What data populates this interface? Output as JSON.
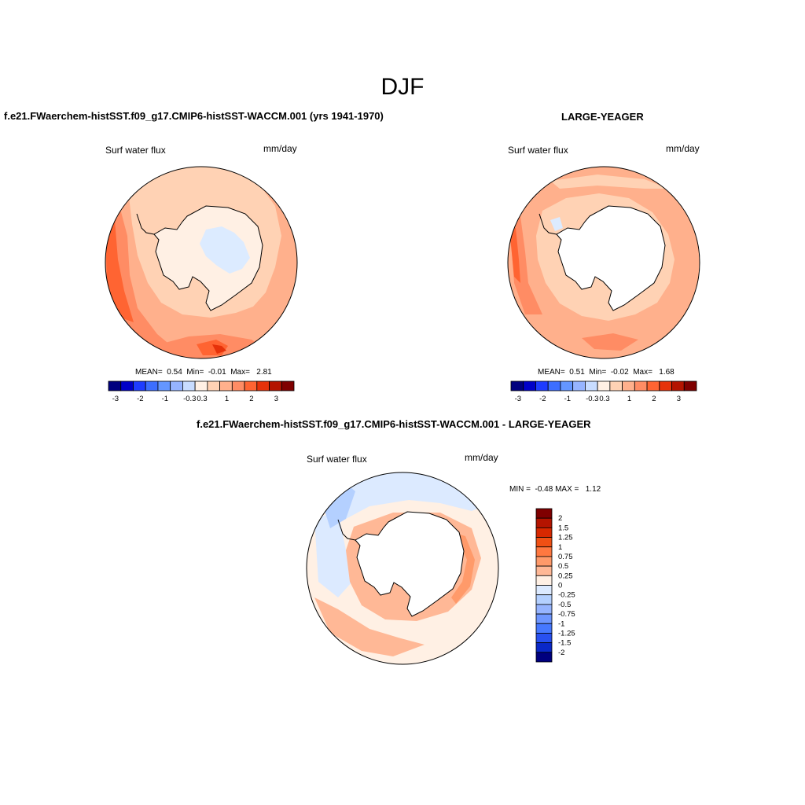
{
  "page": {
    "title": "DJF"
  },
  "panels": [
    {
      "title": "f.e21.FWaerchem-histSST.f09_g17.CMIP6-histSST-WACCM.001 (yrs 1941-1970)",
      "variable": "Surf water flux",
      "units": "mm/day",
      "stats": {
        "mean_label": "MEAN=",
        "mean": "0.54",
        "min_label": "Min=",
        "min": "-0.01",
        "max_label": "Max=",
        "max": "2.81"
      }
    },
    {
      "title": "LARGE-YEAGER",
      "variable": "Surf water flux",
      "units": "mm/day",
      "stats": {
        "mean_label": "MEAN=",
        "mean": "0.51",
        "min_label": "Min=",
        "min": "-0.02",
        "max_label": "Max=",
        "max": "1.68"
      }
    },
    {
      "title": "f.e21.FWaerchem-histSST.f09_g17.CMIP6-histSST-WACCM.001 - LARGE-YEAGER",
      "variable": "Surf water flux",
      "units": "mm/day",
      "stats": {
        "min_label": "MIN =",
        "min": "-0.48",
        "max_label": "MAX =",
        "max": "1.12"
      }
    }
  ],
  "colorbar_abs": {
    "colors": [
      "#00007f",
      "#0000c8",
      "#1e3cff",
      "#3c6eff",
      "#6496ff",
      "#96b4ff",
      "#c8dcff",
      "#fff0e4",
      "#ffd2b4",
      "#ffb08c",
      "#ff8c64",
      "#ff6432",
      "#e6320a",
      "#b41400",
      "#7f0000"
    ],
    "tick_labels": [
      "-3",
      "-2",
      "-1",
      "-0.3",
      "0.3",
      "1",
      "2",
      "3"
    ]
  },
  "colorbar_diff": {
    "colors": [
      "#7f0000",
      "#b41400",
      "#d72800",
      "#f05014",
      "#ff7840",
      "#ff9a6a",
      "#ffb896",
      "#fff0e4",
      "#dceaff",
      "#b4d0ff",
      "#96b4ff",
      "#6e96ff",
      "#4678ff",
      "#2850f0",
      "#0a28c8",
      "#00007f"
    ],
    "tick_labels": [
      "2",
      "1.5",
      "1.25",
      "1",
      "0.75",
      "0.5",
      "0.25",
      "0",
      "-0.25",
      "-0.5",
      "-0.75",
      "-1",
      "-1.25",
      "-1.5",
      "-2"
    ]
  }
}
